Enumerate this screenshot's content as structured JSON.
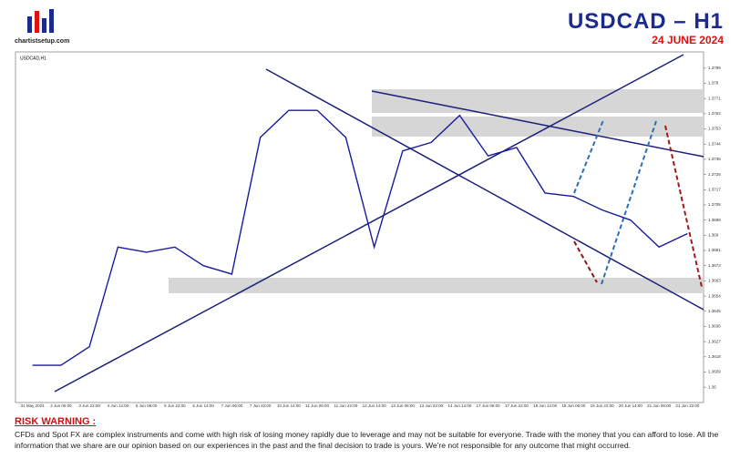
{
  "logo": "chartistsetup.com",
  "header": {
    "title": "USDCAD  –  H1",
    "date": "24 JUNE 2024"
  },
  "chart_data": {
    "type": "line",
    "title": "USDCAD,H1",
    "categories": [
      "31 May 2024",
      "3 Jun 06:00",
      "3 Jun 22:00",
      "4 Jun 14:00",
      "5 Jun 06:00",
      "5 Jun 22:00",
      "6 Jun 14:00",
      "7 Jun 06:00",
      "7 Jun 22:00",
      "10 Jun 14:00",
      "11 Jun 06:00",
      "11 Jun 22:00",
      "12 Jun 14:00",
      "13 Jun 06:00",
      "13 Jun 22:00",
      "14 Jun 14:00",
      "17 Jun 06:00",
      "17 Jun 22:00",
      "18 Jun 14:00",
      "19 Jun 06:00",
      "19 Jun 22:00",
      "20 Jun 14:00",
      "21 Jun 06:00",
      "21 Jun 22:00"
    ],
    "series": [
      {
        "name": "USDCAD",
        "color": "#1a1a9e",
        "values": [
          1.3613,
          1.3613,
          1.3624,
          1.3683,
          1.368,
          1.3683,
          1.3672,
          1.3667,
          1.3748,
          1.3764,
          1.3764,
          1.3748,
          1.3683,
          1.374,
          1.3745,
          1.3761,
          1.3737,
          1.3742,
          1.3715,
          1.3713,
          1.3705,
          1.3699,
          1.3683,
          1.3691
        ]
      }
    ],
    "ylim": [
      1.3592,
      1.3797
    ],
    "yticks": [
      1.36,
      1.3609,
      1.3618,
      1.3627,
      1.3636,
      1.3645,
      1.3654,
      1.3663,
      1.3672,
      1.3681,
      1.369,
      1.3699,
      1.3708,
      1.3717,
      1.3726,
      1.3735,
      1.3744,
      1.3753,
      1.3762,
      1.3771,
      1.378,
      1.3789
    ]
  },
  "warning": {
    "title": "RISK WARNING :",
    "text": "CFDs and Spot FX are complex instruments and come with high risk of losing money rapidly due to leverage and may not be suitable for everyone. Trade with the money that you can afford to lose. All the information that we share are our opinion based on our experiences in the past and the final decision to trade is yours. We're not responsible for any outcome that might occurred."
  }
}
